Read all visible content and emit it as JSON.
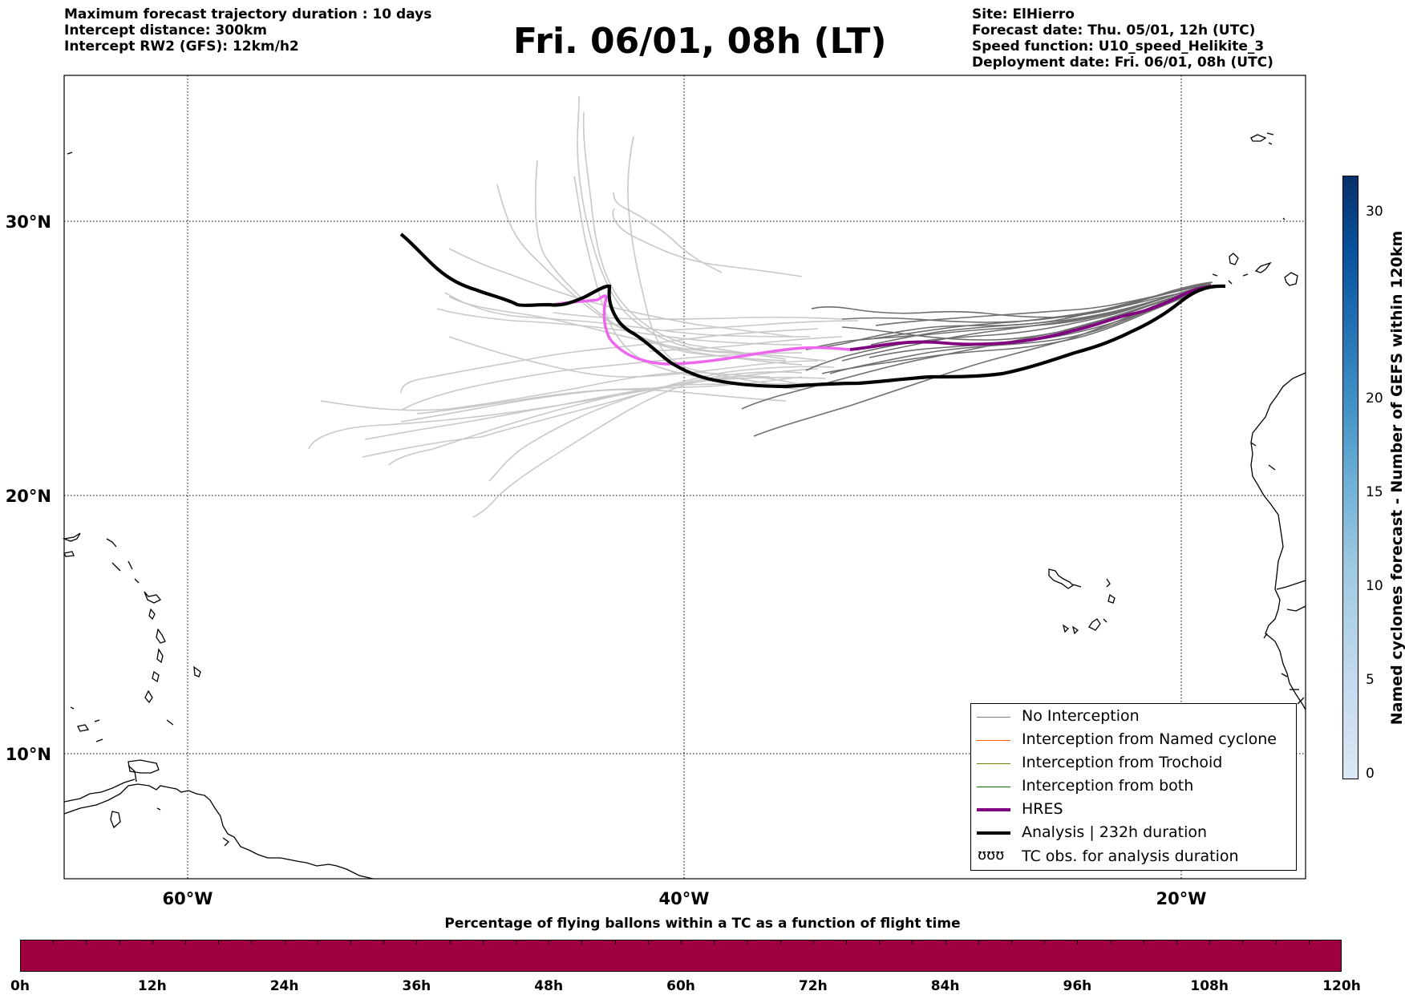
{
  "header_left": {
    "line1": "Maximum forecast trajectory duration : 10 days",
    "line2": "Intercept distance: 300km",
    "line3": "Intercept RW2 (GFS):  12km/h2"
  },
  "title": "Fri. 06/01, 08h (LT)",
  "header_right": {
    "line1": "Site: ElHierro",
    "line2": "Forecast date: Thu. 05/01, 12h (UTC)",
    "line3": "Speed function: U10_speed_Helikite_3",
    "line4": "Deployment date: Fri. 06/01, 08h (UTC)"
  },
  "map": {
    "lon_range": [
      -65,
      15
    ],
    "lat_range": [
      5.5,
      34.8
    ],
    "lat_labels": [
      "30°N",
      "20°N",
      "10°N"
    ],
    "lon_labels": [
      "60°W",
      "40°W",
      "20°W"
    ],
    "gridlines": true
  },
  "legend": {
    "position": "lower-right",
    "items": [
      {
        "label": "No Interception",
        "color": "#808080"
      },
      {
        "label": "Interception from Named cyclone",
        "color": "#ff5500"
      },
      {
        "label": "Interception from Trochoid",
        "color": "#808000"
      },
      {
        "label": "Interception from both",
        "color": "#008000"
      },
      {
        "label": "HRES",
        "color": "#800080"
      },
      {
        "label": "Analysis | 232h duration",
        "color": "#000000"
      },
      {
        "label": "TC obs. for analysis duration",
        "marker": "ʊʊʊ"
      }
    ]
  },
  "bottom_colorbar": {
    "title": "Percentage of flying ballons within a TC as a function of flight time",
    "ticks": [
      "0h",
      "12h",
      "24h",
      "36h",
      "48h",
      "60h",
      "72h",
      "84h",
      "96h",
      "108h",
      "120h"
    ],
    "fill_color": "#9e0040"
  },
  "right_colorbar": {
    "label": "Named cyclones forecast - Number of GEFS within 120km",
    "range": [
      0,
      32
    ],
    "ticks": [
      "0",
      "5",
      "10",
      "15",
      "20",
      "30"
    ]
  }
}
